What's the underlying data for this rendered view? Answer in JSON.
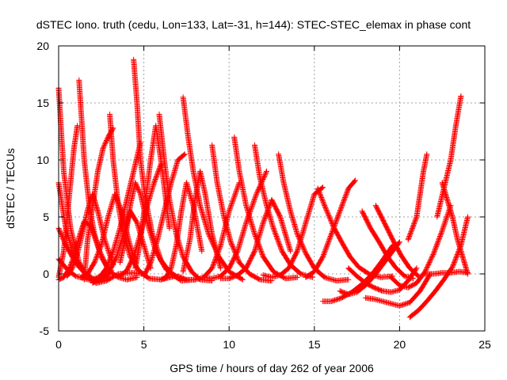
{
  "chart_data": {
    "type": "scatter",
    "title": "dSTEC Iono. truth (cedu, Lon=133, Lat=-31, h=144): STEC-STEC_elemax in phase cont",
    "xlabel": "GPS time / hours of day 262 of year 2006",
    "ylabel": "dSTEC  / TECUs",
    "xlim": [
      0,
      25
    ],
    "ylim": [
      -5,
      20
    ],
    "x_ticks": [
      0,
      5,
      10,
      15,
      20,
      25
    ],
    "y_ticks": [
      -5,
      0,
      5,
      10,
      15,
      20
    ],
    "grid": true,
    "marker": "plus",
    "color": "#ff0000",
    "series": [
      {
        "x": [
          0.0,
          0.3,
          0.7,
          1.2,
          1.7,
          2.2,
          2.8,
          3.5,
          4.3,
          5.0
        ],
        "y": [
          16.3,
          9.0,
          4.0,
          1.0,
          -0.3,
          -0.8,
          -0.6,
          0.0,
          0.1,
          0.0
        ]
      },
      {
        "x": [
          0.0,
          0.4,
          0.9,
          1.5,
          2.0,
          2.6,
          3.1
        ],
        "y": [
          8.0,
          4.2,
          1.5,
          0.1,
          -0.5,
          -0.1,
          0.3
        ]
      },
      {
        "x": [
          0.0,
          0.5,
          1.0,
          1.5,
          2.0,
          2.5,
          3.0
        ],
        "y": [
          1.3,
          0.4,
          -0.2,
          -0.4,
          -0.6,
          -0.4,
          0.1
        ]
      },
      {
        "x": [
          0.0,
          0.4,
          0.8,
          1.2,
          1.6,
          2.0,
          2.4,
          2.9
        ],
        "y": [
          4.0,
          2.6,
          1.5,
          0.6,
          0.0,
          -0.4,
          -0.5,
          -0.2
        ]
      },
      {
        "x": [
          0.0,
          0.3,
          0.6,
          0.9,
          1.1
        ],
        "y": [
          -0.3,
          2.0,
          6.5,
          11.0,
          13.0
        ]
      },
      {
        "x": [
          0.0,
          0.3,
          0.6,
          0.9,
          1.2,
          1.5,
          1.9,
          2.4,
          3.0
        ],
        "y": [
          -0.5,
          -0.3,
          0.4,
          1.5,
          3.2,
          4.6,
          4.2,
          2.0,
          0.1
        ]
      },
      {
        "x": [
          0.5,
          0.8,
          1.1,
          1.4,
          1.7,
          2.0,
          2.3,
          2.7,
          3.2
        ],
        "y": [
          -0.2,
          0.5,
          1.8,
          3.6,
          5.6,
          7.0,
          5.5,
          3.0,
          0.8
        ]
      },
      {
        "x": [
          1.2,
          1.5,
          1.8,
          2.1,
          2.5,
          3.0,
          3.5,
          4.0,
          4.6
        ],
        "y": [
          17.0,
          10.0,
          6.0,
          3.5,
          1.5,
          0.2,
          -0.3,
          -0.5,
          -0.3
        ]
      },
      {
        "x": [
          1.3,
          1.7,
          2.1,
          2.5,
          2.9,
          3.3,
          3.7,
          4.1,
          4.5
        ],
        "y": [
          -0.3,
          0.0,
          1.0,
          2.5,
          5.0,
          7.0,
          5.5,
          3.0,
          1.0
        ]
      },
      {
        "x": [
          1.5,
          1.7,
          2.0,
          2.3,
          2.6,
          2.9,
          3.2
        ],
        "y": [
          -0.5,
          3.0,
          6.0,
          9.0,
          11.0,
          12.0,
          12.8
        ]
      },
      {
        "x": [
          2.0,
          2.4,
          2.8,
          3.2,
          3.6,
          4.0,
          4.4,
          4.8
        ],
        "y": [
          -0.8,
          -0.3,
          0.5,
          2.0,
          4.0,
          6.5,
          9.0,
          11.5
        ]
      },
      {
        "x": [
          3.0,
          3.2,
          3.5,
          3.8,
          4.2,
          4.7,
          5.3,
          6.0,
          6.8
        ],
        "y": [
          14.0,
          10.0,
          6.0,
          3.5,
          1.5,
          0.3,
          -0.4,
          -0.5,
          -0.2
        ]
      },
      {
        "x": [
          2.6,
          3.0,
          3.4,
          3.8,
          4.2,
          4.6,
          5.0,
          5.4
        ],
        "y": [
          -0.2,
          0.3,
          1.5,
          3.5,
          5.5,
          4.5,
          2.5,
          0.5
        ]
      },
      {
        "x": [
          3.6,
          3.9,
          4.2,
          4.5,
          4.8,
          5.2,
          5.7,
          6.3,
          7.0
        ],
        "y": [
          1.0,
          3.0,
          6.0,
          8.0,
          7.0,
          4.5,
          2.0,
          0.4,
          -0.3
        ]
      },
      {
        "x": [
          4.4,
          4.6,
          4.8,
          5.1,
          5.5,
          6.0,
          6.6,
          7.2,
          8.0
        ],
        "y": [
          18.8,
          15.0,
          10.0,
          6.5,
          3.5,
          1.2,
          0.0,
          -0.6,
          -0.5
        ]
      },
      {
        "x": [
          3.6,
          4.0,
          4.4,
          4.8,
          5.2,
          5.6,
          6.0
        ],
        "y": [
          -0.2,
          0.3,
          1.5,
          3.5,
          6.0,
          8.0,
          9.6
        ]
      },
      {
        "x": [
          4.5,
          4.8,
          5.1,
          5.4,
          5.7,
          6.0,
          6.5
        ],
        "y": [
          0.5,
          3.0,
          6.5,
          10.0,
          13.0,
          10.0,
          4.0
        ]
      },
      {
        "x": [
          5.9,
          6.2,
          6.5,
          6.9,
          7.3,
          7.8,
          8.3,
          9.0
        ],
        "y": [
          14.0,
          10.0,
          6.5,
          3.5,
          1.5,
          0.2,
          -0.5,
          -0.6
        ]
      },
      {
        "x": [
          5.0,
          5.4,
          5.8,
          6.2,
          6.6,
          7.0,
          7.4
        ],
        "y": [
          -0.2,
          1.0,
          3.0,
          5.5,
          8.0,
          10.0,
          10.5
        ]
      },
      {
        "x": [
          6.0,
          6.3,
          6.6,
          6.9,
          7.2,
          7.5,
          7.9,
          8.4
        ],
        "y": [
          -0.5,
          -0.3,
          0.5,
          2.5,
          5.5,
          8.0,
          6.0,
          2.0
        ]
      },
      {
        "x": [
          7.3,
          7.6,
          7.9,
          8.3,
          8.8,
          9.4,
          10.0,
          10.8
        ],
        "y": [
          15.5,
          12.0,
          9.0,
          6.0,
          3.5,
          1.5,
          0.2,
          -0.5
        ]
      },
      {
        "x": [
          7.0,
          7.5,
          8.0,
          8.5,
          9.0,
          9.5,
          10.0,
          10.6
        ],
        "y": [
          -0.2,
          -0.5,
          -0.5,
          -0.3,
          0.5,
          2.5,
          5.5,
          8.0
        ]
      },
      {
        "x": [
          7.3,
          7.7,
          8.0,
          8.3,
          8.6,
          9.0,
          9.5
        ],
        "y": [
          0.2,
          3.0,
          6.5,
          9.0,
          7.0,
          3.5,
          0.5
        ]
      },
      {
        "x": [
          8.5,
          9.0,
          9.5,
          10.0,
          10.5,
          11.0,
          11.6,
          12.2
        ],
        "y": [
          -0.3,
          -0.4,
          -0.2,
          0.5,
          2.0,
          4.5,
          7.0,
          9.0
        ]
      },
      {
        "x": [
          9.0,
          9.3,
          9.7,
          10.1,
          10.6,
          11.2,
          11.8,
          12.5
        ],
        "y": [
          11.3,
          8.0,
          5.0,
          2.8,
          1.0,
          0.0,
          -0.5,
          -0.6
        ]
      },
      {
        "x": [
          10.3,
          10.6,
          11.0,
          11.5,
          12.0,
          12.6,
          13.3,
          14.0
        ],
        "y": [
          12.0,
          9.0,
          6.0,
          3.5,
          1.5,
          0.2,
          -0.4,
          -0.3
        ]
      },
      {
        "x": [
          9.5,
          10.0,
          10.5,
          11.0,
          11.5,
          12.0,
          12.5,
          13.0,
          13.6
        ],
        "y": [
          -0.4,
          -0.4,
          -0.1,
          0.5,
          2.0,
          4.5,
          6.5,
          5.0,
          2.0
        ]
      },
      {
        "x": [
          11.5,
          11.8,
          12.2,
          12.6,
          13.1,
          13.6,
          14.2,
          14.9
        ],
        "y": [
          11.3,
          8.5,
          6.0,
          4.0,
          2.0,
          0.8,
          0.0,
          -0.3
        ]
      },
      {
        "x": [
          12.9,
          13.2,
          13.6,
          14.0,
          14.5,
          15.0,
          15.6,
          16.3,
          17.0
        ],
        "y": [
          10.5,
          8.0,
          5.5,
          3.5,
          1.8,
          0.5,
          -0.3,
          -0.6,
          -0.5
        ]
      },
      {
        "x": [
          12.0,
          12.5,
          13.0,
          13.5,
          14.0,
          14.5,
          15.0,
          15.5
        ],
        "y": [
          -0.1,
          -0.3,
          -0.1,
          0.5,
          2.0,
          4.5,
          7.0,
          7.6
        ]
      },
      {
        "x": [
          15.2,
          15.6,
          16.1,
          16.6,
          17.1,
          17.6,
          18.2,
          18.9,
          19.6
        ],
        "y": [
          7.5,
          6.0,
          4.2,
          2.8,
          1.5,
          0.6,
          0.0,
          -0.3,
          -0.2
        ]
      },
      {
        "x": [
          14.5,
          15.0,
          15.5,
          16.0,
          16.5,
          17.0,
          17.4
        ],
        "y": [
          -0.3,
          0.2,
          1.5,
          3.5,
          5.5,
          7.5,
          8.2
        ]
      },
      {
        "x": [
          15.5,
          16.0,
          16.6,
          17.2,
          17.8,
          18.4,
          19.0,
          19.6
        ],
        "y": [
          -2.4,
          -2.4,
          -2.1,
          -1.6,
          -0.9,
          0.0,
          1.2,
          2.5
        ]
      },
      {
        "x": [
          16.5,
          17.0,
          17.5,
          18.0,
          18.5,
          19.0,
          19.5,
          20.0
        ],
        "y": [
          -1.5,
          -1.8,
          -1.6,
          -1.0,
          -0.2,
          0.8,
          1.8,
          2.8
        ]
      },
      {
        "x": [
          17.0,
          17.5,
          18.0,
          18.5,
          19.0,
          19.5,
          20.0,
          20.5,
          21.0
        ],
        "y": [
          0.5,
          -0.2,
          -0.8,
          -1.2,
          -1.5,
          -1.6,
          -1.4,
          -0.6,
          0.5
        ]
      },
      {
        "x": [
          18.0,
          18.5,
          19.0,
          19.5,
          20.0,
          20.6,
          21.2,
          21.8
        ],
        "y": [
          -2.1,
          -2.2,
          -2.4,
          -2.6,
          -2.8,
          -2.5,
          -1.5,
          0.0
        ]
      },
      {
        "x": [
          17.8,
          18.3,
          18.8,
          19.3,
          19.8,
          20.3,
          20.8
        ],
        "y": [
          5.5,
          4.0,
          2.8,
          1.5,
          0.5,
          -0.2,
          -0.4
        ]
      },
      {
        "x": [
          18.6,
          19.1,
          19.6,
          20.1,
          20.6,
          21.1
        ],
        "y": [
          6.0,
          4.5,
          3.0,
          1.6,
          0.5,
          -0.2
        ]
      },
      {
        "x": [
          20.6,
          21.1,
          21.6,
          22.1,
          22.6,
          23.1,
          23.6,
          24.0
        ],
        "y": [
          -3.8,
          -3.2,
          -2.4,
          -1.5,
          -0.5,
          0.6,
          2.5,
          5.0
        ]
      },
      {
        "x": [
          19.5,
          20.0,
          20.5,
          21.0,
          21.5,
          22.0,
          22.5,
          23.0
        ],
        "y": [
          -0.3,
          -1.0,
          -1.2,
          -0.8,
          0.2,
          1.8,
          3.8,
          6.0
        ]
      },
      {
        "x": [
          20.5,
          21.0,
          21.2,
          21.4,
          21.6
        ],
        "y": [
          3.0,
          5.0,
          7.0,
          9.0,
          10.5
        ]
      },
      {
        "x": [
          21.5,
          22.0,
          22.5,
          23.0,
          23.5,
          24.0
        ],
        "y": [
          0.0,
          0.0,
          0.1,
          0.1,
          0.2,
          0.1
        ]
      },
      {
        "x": [
          22.5,
          22.8,
          23.1,
          23.4,
          23.7,
          24.0
        ],
        "y": [
          8.0,
          6.5,
          5.0,
          3.0,
          1.5,
          0.0
        ]
      },
      {
        "x": [
          22.2,
          22.6,
          23.0,
          23.3,
          23.6
        ],
        "y": [
          5.0,
          7.5,
          10.0,
          13.0,
          15.6
        ]
      }
    ]
  }
}
